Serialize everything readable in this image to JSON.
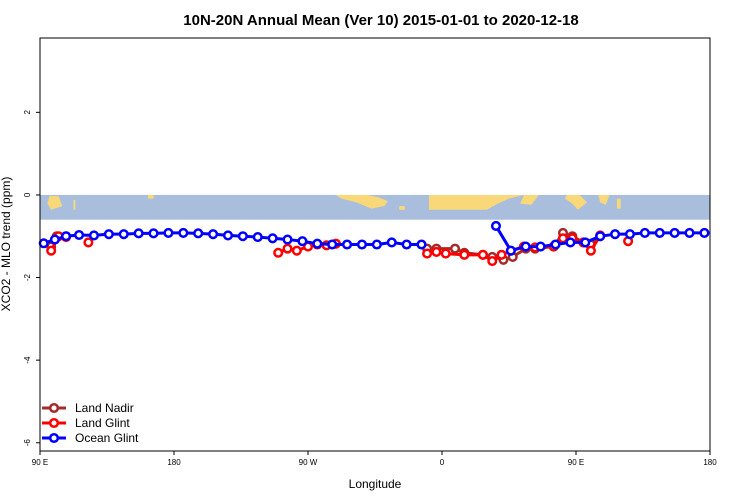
{
  "chart_data": {
    "type": "line",
    "title": "10N-20N Annual Mean (Ver 10)   2015-01-01 to 2020-12-18",
    "xlabel": "Longitude",
    "ylabel": "XCO2 - MLO trend (ppm)",
    "xlim": [
      -90,
      270
    ],
    "ylim": [
      -6.2,
      3.8
    ],
    "xticks": [
      {
        "value": -90,
        "label": "90 E"
      },
      {
        "value": -18,
        "label": "180"
      },
      {
        "value": 54,
        "label": "90 W"
      },
      {
        "value": 126,
        "label": "0"
      },
      {
        "value": 198,
        "label": "90 E"
      },
      {
        "value": 270,
        "label": "180"
      }
    ],
    "yticks": [
      {
        "value": 2,
        "label": "2"
      },
      {
        "value": 0,
        "label": "0"
      },
      {
        "value": -2,
        "label": "-2"
      },
      {
        "value": -4,
        "label": "-4"
      },
      {
        "value": -6,
        "label": "-6"
      }
    ],
    "map_band": {
      "y_top": 0,
      "y_bottom": -0.6,
      "ocean_color": "#a8bedc",
      "land_color": "#f8d878"
    },
    "legend_position": "bottom-left",
    "series": [
      {
        "name": "Land Nadir",
        "color": "#a52a2a",
        "segments": [
          [
            [
              -84,
              -1.25
            ],
            [
              -81,
              -1.0
            ],
            [
              -76,
              -1.0
            ]
          ],
          [
            [
              118,
              -1.3
            ],
            [
              123,
              -1.3
            ],
            [
              133,
              -1.3
            ],
            [
              138,
              -1.4
            ],
            [
              148,
              -1.45
            ],
            [
              153,
              -1.5
            ],
            [
              159,
              -1.57
            ],
            [
              164,
              -1.5
            ],
            [
              171,
              -1.3
            ],
            [
              176,
              -1.3
            ],
            [
              186,
              -1.25
            ],
            [
              191,
              -0.92
            ],
            [
              196,
              -1.0
            ],
            [
              202,
              -1.15
            ],
            [
              206,
              -1.2
            ],
            [
              211,
              -1.0
            ]
          ]
        ]
      },
      {
        "name": "Land Glint",
        "color": "#ff0000",
        "segments": [
          [
            [
              -84,
              -1.35
            ],
            [
              -80,
              -1.0
            ],
            [
              -76,
              -1.02
            ]
          ],
          [
            [
              -64,
              -1.15
            ]
          ],
          [
            [
              38,
              -1.4
            ],
            [
              43,
              -1.3
            ],
            [
              48,
              -1.35
            ],
            [
              54,
              -1.25
            ],
            [
              59,
              -1.2
            ],
            [
              64,
              -1.22
            ],
            [
              69,
              -1.18
            ]
          ],
          [
            [
              118,
              -1.42
            ],
            [
              123,
              -1.38
            ],
            [
              128,
              -1.42
            ],
            [
              138,
              -1.45
            ],
            [
              148,
              -1.45
            ],
            [
              153,
              -1.6
            ],
            [
              158,
              -1.45
            ],
            [
              163,
              -1.35
            ],
            [
              170,
              -1.25
            ],
            [
              176,
              -1.27
            ],
            [
              186,
              -1.25
            ],
            [
              191,
              -1.05
            ],
            [
              196,
              -1.05
            ],
            [
              202,
              -1.15
            ],
            [
              206,
              -1.35
            ],
            [
              211,
              -0.98
            ]
          ],
          [
            [
              226,
              -1.12
            ]
          ]
        ]
      },
      {
        "name": "Ocean Glint",
        "color": "#0000ff",
        "segments": [
          [
            [
              -88,
              -1.17
            ],
            [
              -82,
              -1.08
            ],
            [
              -76,
              -1.0
            ],
            [
              -69,
              -0.97
            ],
            [
              -61,
              -0.98
            ],
            [
              -53,
              -0.95
            ],
            [
              -45,
              -0.95
            ],
            [
              -37,
              -0.93
            ],
            [
              -29,
              -0.93
            ],
            [
              -21,
              -0.92
            ],
            [
              -13,
              -0.92
            ],
            [
              -5,
              -0.93
            ],
            [
              3,
              -0.95
            ],
            [
              11,
              -0.98
            ],
            [
              19,
              -1.0
            ],
            [
              27,
              -1.02
            ],
            [
              35,
              -1.05
            ],
            [
              43,
              -1.08
            ],
            [
              51,
              -1.12
            ],
            [
              59,
              -1.18
            ],
            [
              67,
              -1.2
            ],
            [
              75,
              -1.2
            ],
            [
              83,
              -1.2
            ],
            [
              91,
              -1.2
            ],
            [
              99,
              -1.15
            ],
            [
              107,
              -1.2
            ],
            [
              115,
              -1.2
            ]
          ],
          [
            [
              155,
              -0.75
            ],
            [
              163,
              -1.35
            ],
            [
              171,
              -1.25
            ],
            [
              179,
              -1.25
            ],
            [
              187,
              -1.2
            ],
            [
              195,
              -1.15
            ],
            [
              203,
              -1.15
            ],
            [
              211,
              -1.0
            ],
            [
              219,
              -0.95
            ],
            [
              227,
              -0.95
            ],
            [
              235,
              -0.92
            ],
            [
              243,
              -0.92
            ],
            [
              251,
              -0.92
            ],
            [
              259,
              -0.92
            ],
            [
              267,
              -0.92
            ]
          ]
        ]
      }
    ]
  }
}
